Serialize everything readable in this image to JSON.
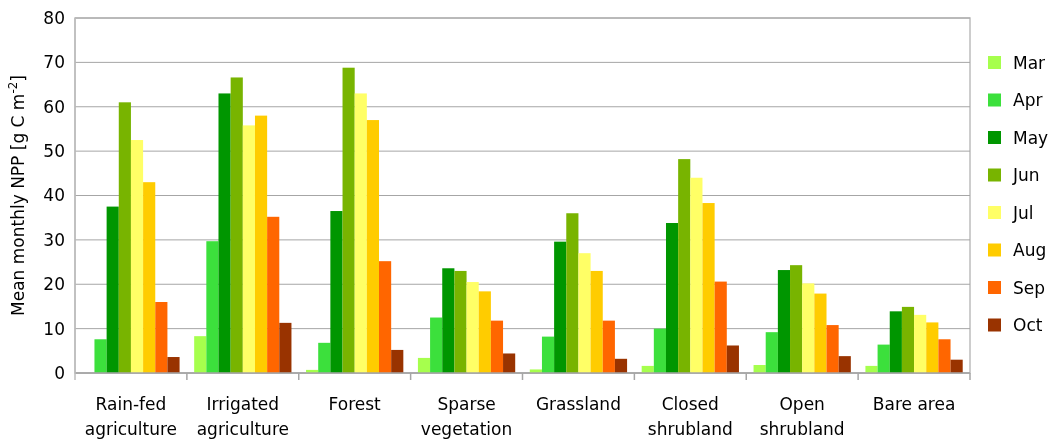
{
  "chart_data": {
    "type": "bar",
    "ylabel": "Mean monthly NPP [g C m$^{-2}$]",
    "categories": [
      "Rain-fed\nagriculture",
      "Irrigated\nagriculture",
      "Forest",
      "Sparse\nvegetation",
      "Grassland",
      "Closed\nshrubland",
      "Open\nshrubland",
      "Bare area"
    ],
    "series": [
      {
        "name": "Mar",
        "color": "#a6ff4d",
        "values": [
          null,
          8.3,
          0.7,
          3.4,
          0.8,
          1.6,
          1.8,
          1.6
        ]
      },
      {
        "name": "Apr",
        "color": "#3ce03c",
        "values": [
          7.6,
          29.7,
          6.8,
          12.5,
          8.2,
          10,
          9.2,
          6.4
        ]
      },
      {
        "name": "May",
        "color": "#009600",
        "values": [
          37.5,
          63,
          36.5,
          23.6,
          29.6,
          33.8,
          23.2,
          13.9
        ]
      },
      {
        "name": "Jun",
        "color": "#78b400",
        "values": [
          61,
          66.6,
          68.8,
          23,
          36,
          48.2,
          24.3,
          14.9
        ]
      },
      {
        "name": "Jul",
        "color": "#ffff66",
        "values": [
          52.5,
          55.8,
          63,
          20.5,
          27,
          44,
          20.2,
          13.1
        ]
      },
      {
        "name": "Aug",
        "color": "#ffcc00",
        "values": [
          43,
          58,
          57,
          18.4,
          23,
          38.3,
          17.9,
          11.4
        ]
      },
      {
        "name": "Sep",
        "color": "#ff6600",
        "values": [
          16,
          35.2,
          25.2,
          11.8,
          11.8,
          20.6,
          10.8,
          7.6
        ]
      },
      {
        "name": "Oct",
        "color": "#993300",
        "values": [
          3.6,
          11.3,
          5.2,
          4.4,
          3.2,
          6.2,
          3.8,
          3
        ]
      }
    ],
    "ylim": [
      0,
      80
    ],
    "yticks": [
      0,
      10,
      20,
      30,
      40,
      50,
      60,
      70,
      80
    ],
    "grid": "y",
    "legend": "right"
  }
}
